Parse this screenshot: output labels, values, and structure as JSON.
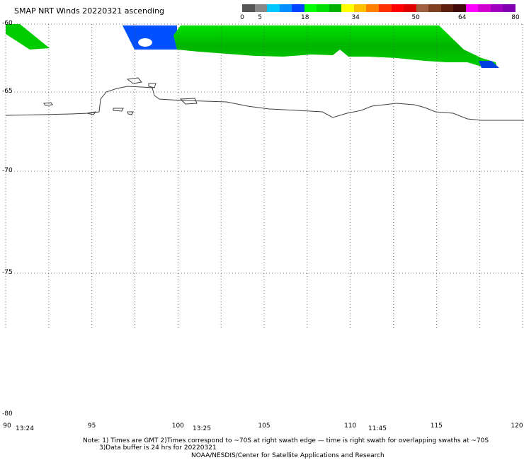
{
  "title": "SMAP NRT Winds 20220321 ascending",
  "colorbar": {
    "segments": [
      "#555555",
      "#888888",
      "#00c8ff",
      "#0090ff",
      "#0044ff",
      "#00ff00",
      "#00e000",
      "#00b000",
      "#ffff00",
      "#ffc000",
      "#ff8000",
      "#ff3000",
      "#ff0000",
      "#e00000",
      "#a06040",
      "#804020",
      "#602010",
      "#400808",
      "#ff00ff",
      "#d000d0",
      "#a000c0",
      "#8000b0"
    ],
    "labels": [
      {
        "text": "0",
        "pos": 0
      },
      {
        "text": "5",
        "pos": 0.065
      },
      {
        "text": "18",
        "pos": 0.23
      },
      {
        "text": "34",
        "pos": 0.415
      },
      {
        "text": "50",
        "pos": 0.635
      },
      {
        "text": "64",
        "pos": 0.805
      },
      {
        "text": "80",
        "pos": 1.0
      }
    ]
  },
  "map": {
    "lon_labels": [
      "90",
      "95",
      "100",
      "105",
      "110",
      "115",
      "120"
    ],
    "lat_labels": [
      "-60",
      "-65",
      "-70",
      "-75",
      "-80"
    ],
    "times": [
      "13:24",
      "13:25",
      "11:45"
    ]
  },
  "notes": {
    "line1": "Note: 1) Times are GMT 2)Times correspond to ~70S at right swath edge — time is right swath for overlapping swaths at ~70S",
    "line2": "3)Data buffer is 24 hrs for 20220321",
    "line3": "NOAA/NESDIS/Center for Satellite Applications and Research"
  }
}
